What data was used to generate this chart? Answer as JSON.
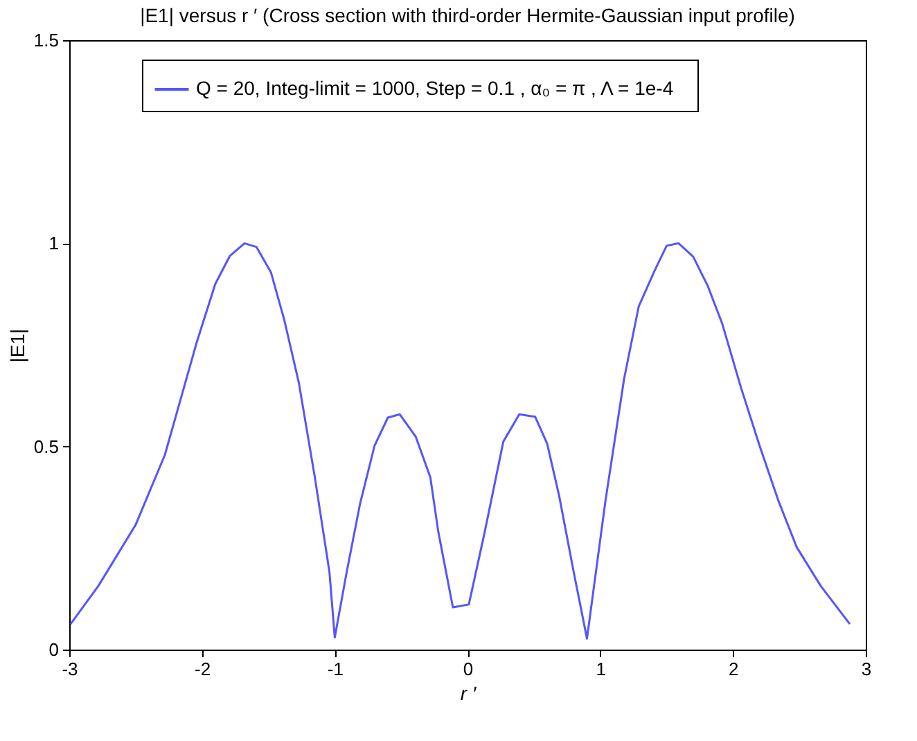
{
  "chart_data": {
    "type": "line",
    "title": "|E1| versus r ′ (Cross section with third-order Hermite-Gaussian input profile)",
    "xlabel": "r ′",
    "ylabel": "|E1|",
    "xlim": [
      -3,
      3
    ],
    "xticks": [
      -3,
      -2,
      -1,
      0,
      1,
      2,
      3
    ],
    "ylim": [
      0,
      1.5
    ],
    "yticks": [
      0,
      0.5,
      1,
      1.5
    ],
    "legend": "top",
    "grid": false,
    "x": [
      -2.99,
      -2.78,
      -2.5,
      -2.28,
      -2.04,
      -1.9,
      -1.79,
      -1.68,
      -1.59,
      -1.48,
      -1.38,
      -1.27,
      -1.15,
      -1.04,
      -1.0,
      -0.91,
      -0.81,
      -0.7,
      -0.6,
      -0.51,
      -0.39,
      -0.28,
      -0.22,
      -0.11,
      0.01,
      0.13,
      0.27,
      0.39,
      0.51,
      0.6,
      0.69,
      0.8,
      0.9,
      1.04,
      1.18,
      1.29,
      1.41,
      1.5,
      1.59,
      1.7,
      1.81,
      1.92,
      2.06,
      2.2,
      2.34,
      2.48,
      2.66,
      2.88
    ],
    "series": [
      {
        "name": "Q = 20, Integ-limit = 1000,   Step = 0.1 , α₀ = π , Λ = 1e-4",
        "color": "#5555ff",
        "values": [
          0.063,
          0.157,
          0.307,
          0.479,
          0.756,
          0.9,
          0.969,
          1.0,
          0.991,
          0.928,
          0.811,
          0.656,
          0.424,
          0.191,
          0.03,
          0.191,
          0.358,
          0.502,
          0.571,
          0.579,
          0.524,
          0.424,
          0.29,
          0.104,
          0.111,
          0.29,
          0.512,
          0.579,
          0.573,
          0.507,
          0.379,
          0.191,
          0.027,
          0.368,
          0.667,
          0.845,
          0.933,
          0.994,
          1.0,
          0.967,
          0.895,
          0.801,
          0.645,
          0.502,
          0.368,
          0.252,
          0.157,
          0.063
        ]
      }
    ]
  }
}
